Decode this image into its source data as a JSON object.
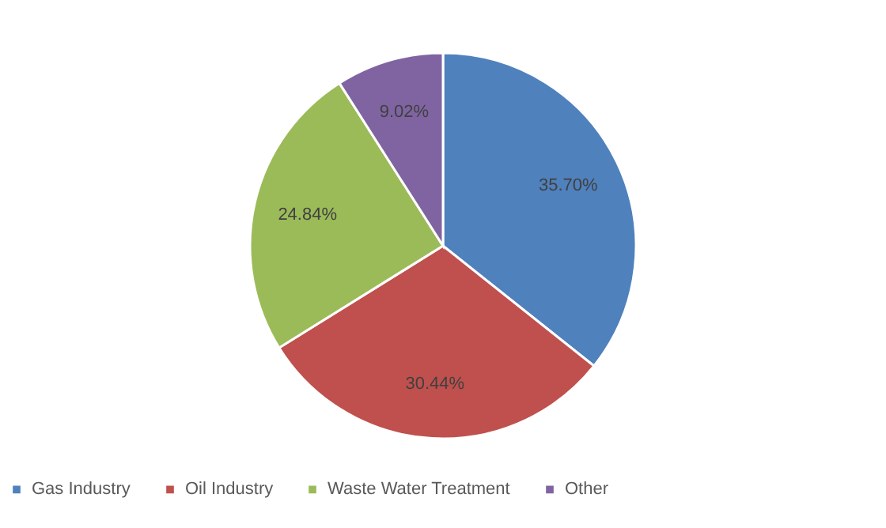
{
  "chart_data": {
    "type": "pie",
    "categories": [
      "Gas Industry",
      "Oil Industry",
      "Waste Water Treatment",
      "Other"
    ],
    "values": [
      35.7,
      30.44,
      24.84,
      9.02
    ],
    "colors": [
      "#4f81bd",
      "#c0504d",
      "#9bbb59",
      "#8064a2"
    ],
    "value_labels": [
      "35.70%",
      "30.44%",
      "24.84%",
      "9.02%"
    ],
    "legend": "bottom"
  }
}
